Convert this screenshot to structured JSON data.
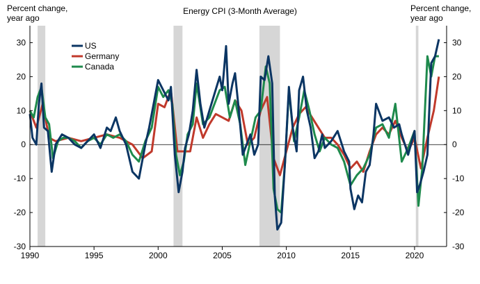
{
  "chart_data": {
    "type": "line",
    "title": "Energy CPI (3-Month Average)",
    "left_axis_label": [
      "Percent change,",
      "year ago"
    ],
    "right_axis_label": [
      "Percent change,",
      "year ago"
    ],
    "xlim": [
      1990,
      2022.5
    ],
    "ylim": [
      -30,
      35
    ],
    "x_ticks": [
      1990,
      1995,
      2000,
      2005,
      2010,
      2015,
      2020
    ],
    "y_ticks": [
      -30,
      -20,
      -10,
      0,
      10,
      20,
      30
    ],
    "recessions": [
      [
        1990.6,
        1991.2
      ],
      [
        2001.2,
        2001.9
      ],
      [
        2007.9,
        2009.5
      ],
      [
        2020.1,
        2020.3
      ]
    ],
    "legend": [
      "US",
      "Germany",
      "Canada"
    ],
    "series": [
      {
        "name": "US",
        "color": "#0b3563",
        "x": [
          1990.0,
          1990.2,
          1990.5,
          1990.7,
          1990.9,
          1991.1,
          1991.4,
          1991.7,
          1992.0,
          1992.5,
          1993.0,
          1993.5,
          1994.0,
          1994.5,
          1995.0,
          1995.5,
          1996.0,
          1996.3,
          1996.7,
          1997.0,
          1997.5,
          1998.0,
          1998.5,
          1999.0,
          1999.3,
          1999.7,
          2000.0,
          2000.4,
          2000.8,
          2001.0,
          2001.3,
          2001.6,
          2001.9,
          2002.1,
          2002.4,
          2002.7,
          2003.0,
          2003.3,
          2003.6,
          2004.0,
          2004.4,
          2004.8,
          2005.0,
          2005.3,
          2005.5,
          2005.8,
          2006.0,
          2006.3,
          2006.6,
          2006.9,
          2007.2,
          2007.5,
          2007.8,
          2008.0,
          2008.3,
          2008.6,
          2008.9,
          2009.1,
          2009.3,
          2009.6,
          2009.9,
          2010.2,
          2010.5,
          2010.8,
          2011.0,
          2011.3,
          2011.6,
          2011.9,
          2012.2,
          2012.5,
          2012.8,
          2013.0,
          2013.5,
          2014.0,
          2014.5,
          2014.9,
          2015.0,
          2015.3,
          2015.6,
          2015.9,
          2016.2,
          2016.5,
          2016.8,
          2017.0,
          2017.5,
          2018.0,
          2018.4,
          2018.8,
          2019.0,
          2019.5,
          2020.0,
          2020.2,
          2020.4,
          2020.7,
          2021.0,
          2021.3,
          2021.6,
          2021.9
        ],
        "values": [
          9,
          2,
          0,
          12,
          18,
          5,
          4,
          -8,
          0,
          3,
          2,
          0,
          -1,
          1,
          3,
          -1,
          5,
          4,
          8,
          4,
          0,
          -8,
          -10,
          0,
          5,
          13,
          19,
          16,
          13,
          17,
          -3,
          -14,
          -8,
          -1,
          3,
          10,
          22,
          12,
          5,
          10,
          15,
          20,
          16,
          29,
          12,
          18,
          21,
          10,
          -3,
          0,
          3,
          -3,
          0,
          20,
          19,
          26,
          18,
          -15,
          -25,
          -23,
          -5,
          17,
          5,
          -2,
          16,
          20,
          10,
          5,
          -4,
          -2,
          3,
          -1,
          1,
          4,
          -2,
          -5,
          -13,
          -19,
          -15,
          -17,
          -8,
          -6,
          3,
          12,
          7,
          8,
          5,
          6,
          3,
          -3,
          4,
          -14,
          -12,
          -8,
          -3,
          24,
          26,
          31
        ]
      },
      {
        "name": "Germany",
        "color": "#c0392b",
        "x": [
          1990.0,
          1990.5,
          1991.0,
          1991.5,
          1992.0,
          1993.0,
          1994.0,
          1995.0,
          1996.0,
          1997.0,
          1998.0,
          1998.8,
          1999.5,
          2000.0,
          2000.5,
          2001.0,
          2001.5,
          2002.0,
          2002.5,
          2003.0,
          2003.5,
          2004.0,
          2004.5,
          2005.0,
          2005.5,
          2006.0,
          2006.5,
          2007.0,
          2007.5,
          2008.0,
          2008.5,
          2009.0,
          2009.5,
          2010.0,
          2010.5,
          2011.0,
          2011.5,
          2012.0,
          2012.5,
          2013.0,
          2013.5,
          2014.0,
          2014.5,
          2015.0,
          2015.5,
          2016.0,
          2016.5,
          2017.0,
          2017.5,
          2018.0,
          2018.5,
          2019.0,
          2019.5,
          2020.0,
          2020.5,
          2021.0,
          2021.5,
          2021.9
        ],
        "values": [
          10,
          5,
          12,
          2,
          1,
          2,
          1,
          2,
          3,
          2,
          0,
          -4,
          -2,
          12,
          11,
          16,
          -2,
          -2,
          -2,
          8,
          2,
          6,
          9,
          8,
          7,
          13,
          10,
          0,
          2,
          10,
          14,
          -4,
          -9,
          -2,
          5,
          9,
          11,
          8,
          5,
          2,
          2,
          0,
          -3,
          -7,
          -5,
          -8,
          -2,
          3,
          5,
          3,
          7,
          2,
          -2,
          2,
          -7,
          2,
          10,
          20
        ]
      },
      {
        "name": "Canada",
        "color": "#1e8a4c",
        "x": [
          1990.0,
          1990.3,
          1990.6,
          1990.9,
          1991.2,
          1991.5,
          1991.8,
          1992.2,
          1992.6,
          1993.0,
          1993.5,
          1994.0,
          1994.5,
          1995.0,
          1995.5,
          1996.0,
          1996.5,
          1997.0,
          1997.5,
          1998.0,
          1998.5,
          1999.0,
          1999.5,
          2000.0,
          2000.4,
          2000.8,
          2001.1,
          2001.4,
          2001.7,
          2002.0,
          2002.3,
          2002.7,
          2003.0,
          2003.5,
          2004.0,
          2004.4,
          2004.8,
          2005.2,
          2005.6,
          2006.0,
          2006.4,
          2006.8,
          2007.2,
          2007.6,
          2008.0,
          2008.4,
          2008.7,
          2009.0,
          2009.3,
          2009.6,
          2009.9,
          2010.2,
          2010.6,
          2011.0,
          2011.4,
          2011.8,
          2012.2,
          2012.6,
          2013.0,
          2013.5,
          2014.0,
          2014.5,
          2015.0,
          2015.5,
          2016.0,
          2016.5,
          2017.0,
          2017.5,
          2018.0,
          2018.5,
          2019.0,
          2019.5,
          2020.0,
          2020.3,
          2020.6,
          2021.0,
          2021.3,
          2021.6,
          2021.9
        ],
        "values": [
          10,
          8,
          14,
          17,
          8,
          6,
          -4,
          1,
          2,
          2,
          1,
          -1,
          1,
          2,
          0,
          3,
          2,
          3,
          1,
          -3,
          -5,
          1,
          5,
          17,
          14,
          16,
          12,
          -3,
          -9,
          -5,
          3,
          6,
          18,
          6,
          8,
          12,
          16,
          17,
          8,
          13,
          6,
          -6,
          1,
          8,
          10,
          23,
          18,
          -13,
          -19,
          -20,
          -5,
          16,
          1,
          8,
          16,
          10,
          3,
          -2,
          2,
          0,
          -1,
          -5,
          -12,
          -9,
          -7,
          -3,
          5,
          6,
          2,
          12,
          -5,
          -1,
          4,
          -18,
          -7,
          26,
          20,
          26,
          26
        ]
      }
    ]
  }
}
